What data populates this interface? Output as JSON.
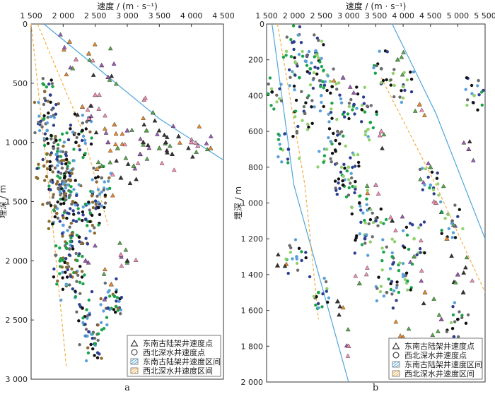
{
  "chart_data": [
    {
      "panel": "a",
      "type": "scatter",
      "xlabel": "速度 / (m · s⁻¹)",
      "ylabel": "埋深 / m",
      "xlim": [
        1500,
        4500
      ],
      "ylim": [
        0,
        3000
      ],
      "y_inverted": true,
      "x_axis_position": "top",
      "xticks": [
        1500,
        2000,
        2500,
        3000,
        3500,
        4000,
        4500
      ],
      "xtick_labels": [
        "1 500",
        "2 000",
        "2 500",
        "3 000",
        "3 500",
        "4 000",
        "4 500"
      ],
      "yticks": [
        0,
        500,
        1000,
        1500,
        2000,
        2500,
        3000
      ],
      "ytick_labels": [
        "0",
        "500",
        "1 000",
        "1 500",
        "2 000",
        "2 500",
        "3 000"
      ],
      "series": [
        {
          "name": "东南古陆架井速度点",
          "marker": "triangle",
          "colors": [
            "#f28fb0",
            "#e88a2d",
            "#9b59b6",
            "#55a84a",
            "#333333"
          ],
          "points": [
            [
              2200,
              300
            ],
            [
              2400,
              250
            ],
            [
              2700,
              450
            ],
            [
              3300,
              900
            ],
            [
              3600,
              1000
            ],
            [
              4000,
              1000
            ],
            [
              4300,
              1050
            ],
            [
              3200,
              1100
            ],
            [
              2600,
              1200
            ],
            [
              2900,
              1300
            ],
            [
              2400,
              800
            ],
            [
              2800,
              850
            ],
            [
              3000,
              900
            ],
            [
              3500,
              1050
            ],
            [
              3800,
              950
            ],
            [
              2500,
              600
            ],
            [
              2300,
              700
            ],
            [
              2700,
              1000
            ],
            [
              3100,
              1200
            ],
            [
              3000,
              2000
            ],
            [
              2900,
              1950
            ],
            [
              2100,
              150
            ],
            [
              2600,
              350
            ],
            [
              3400,
              750
            ],
            [
              3700,
              1100
            ],
            [
              4100,
              1030
            ],
            [
              2750,
              2200
            ],
            [
              2350,
              2000
            ],
            [
              2850,
              1050
            ],
            [
              3250,
              1000
            ]
          ]
        },
        {
          "name": "西北深水井速度点",
          "marker": "circle",
          "colors": [
            "#2f3e8f",
            "#1aa34a",
            "#5aa0d8",
            "#6b6b6b",
            "#8b6b2e",
            "#111111"
          ],
          "points": [
            [
              1800,
              1400
            ],
            [
              1950,
              1300
            ],
            [
              2000,
              1700
            ],
            [
              2100,
              1900
            ],
            [
              2200,
              2100
            ],
            [
              2300,
              2400
            ],
            [
              2400,
              2600
            ],
            [
              2500,
              2700
            ],
            [
              1900,
              1100
            ],
            [
              2050,
              1250
            ],
            [
              2150,
              1500
            ],
            [
              2250,
              1800
            ],
            [
              2350,
              1650
            ],
            [
              1700,
              800
            ],
            [
              1750,
              900
            ],
            [
              1850,
              1050
            ],
            [
              2450,
              1450
            ],
            [
              2550,
              1550
            ],
            [
              2700,
              2400
            ],
            [
              2800,
              2300
            ],
            [
              2000,
              1350
            ],
            [
              2100,
              1450
            ],
            [
              1900,
              1600
            ],
            [
              2200,
              1000
            ],
            [
              1800,
              600
            ],
            [
              1950,
              2000
            ],
            [
              2050,
              2200
            ],
            [
              2600,
              1300
            ],
            [
              1700,
              1200
            ],
            [
              2300,
              900
            ]
          ]
        }
      ],
      "intervals": [
        {
          "name": "东南古陆架井速度区间",
          "style": "solid",
          "color": "#4da6d9",
          "line": [
            [
              1700,
              0
            ],
            [
              2600,
              400
            ],
            [
              3500,
              800
            ],
            [
              4500,
              1150
            ]
          ]
        },
        {
          "name": "西北深水井速度区间",
          "style": "dashed",
          "color": "#f0a830",
          "lines": [
            [
              [
                1500,
                0
              ],
              [
                1800,
                1500
              ],
              [
                2050,
                2900
              ]
            ],
            [
              [
                1600,
                0
              ],
              [
                2300,
                900
              ],
              [
                2700,
                1700
              ]
            ]
          ]
        }
      ],
      "legend": [
        "东南古陆架井速度点",
        "西北深水井速度点",
        "东南古陆架井速度区间",
        "西北深水井速度区间"
      ],
      "legend_position": "bottom-right"
    },
    {
      "panel": "b",
      "type": "scatter",
      "xlabel": "速度 / (m · s⁻¹)",
      "ylabel": "埋深 / m",
      "xlim": [
        1500,
        5500
      ],
      "ylim": [
        0,
        2000
      ],
      "y_inverted": true,
      "x_axis_position": "top",
      "xticks": [
        1500,
        2000,
        2500,
        3000,
        3500,
        4000,
        4500,
        5000,
        5500
      ],
      "xtick_labels": [
        "1 500",
        "2 000",
        "2 500",
        "3 000",
        "3 500",
        "4 000",
        "4 500",
        "5 000",
        "5 500"
      ],
      "yticks": [
        200,
        400,
        600,
        800,
        1000,
        1200,
        1400,
        1600,
        1800,
        2000
      ],
      "ytick_labels": [
        "200",
        "400",
        "600",
        "800",
        "1 000",
        "1 200",
        "1 400",
        "1 600",
        "1 800",
        "2 000"
      ],
      "series": [
        {
          "name": "东南古陆架井速度点",
          "marker": "triangle",
          "colors": [
            "#f28fb0",
            "#e88a2d",
            "#9b59b6",
            "#55a84a",
            "#333333"
          ],
          "points": [
            [
              4600,
              1000
            ],
            [
              4800,
              1200
            ],
            [
              5000,
              1400
            ],
            [
              4200,
              1300
            ],
            [
              3800,
              1100
            ],
            [
              3500,
              900
            ],
            [
              4400,
              1500
            ],
            [
              4700,
              1650
            ],
            [
              3200,
              1450
            ],
            [
              2800,
              1550
            ],
            [
              3000,
              1800
            ],
            [
              4000,
              1750
            ],
            [
              5200,
              700
            ],
            [
              4500,
              800
            ],
            [
              1700,
              1350
            ],
            [
              3600,
              600
            ],
            [
              4300,
              450
            ],
            [
              2900,
              300
            ],
            [
              3900,
              200
            ],
            [
              5100,
              1500
            ]
          ]
        },
        {
          "name": "西北深水井速度点",
          "marker": "circle",
          "colors": [
            "#2f3e8f",
            "#1aa34a",
            "#5aa0d8",
            "#6b6b6b",
            "#8fd16b",
            "#111111"
          ],
          "points": [
            [
              2000,
              100
            ],
            [
              2300,
              250
            ],
            [
              2500,
              400
            ],
            [
              2800,
              600
            ],
            [
              3000,
              800
            ],
            [
              3200,
              1000
            ],
            [
              3500,
              1100
            ],
            [
              3800,
              1300
            ],
            [
              4000,
              1400
            ],
            [
              2200,
              500
            ],
            [
              2600,
              700
            ],
            [
              2900,
              900
            ],
            [
              3300,
              1200
            ],
            [
              2100,
              300
            ],
            [
              2400,
              150
            ],
            [
              3600,
              250
            ],
            [
              4000,
              350
            ],
            [
              2700,
              350
            ],
            [
              3100,
              450
            ],
            [
              3400,
              550
            ],
            [
              4500,
              900
            ],
            [
              4900,
              1100
            ],
            [
              5300,
              400
            ],
            [
              1600,
              380
            ],
            [
              1900,
              700
            ],
            [
              2450,
              1500
            ],
            [
              2050,
              1300
            ],
            [
              3700,
              1500
            ],
            [
              4200,
              1200
            ],
            [
              5000,
              1650
            ]
          ]
        }
      ],
      "intervals": [
        {
          "name": "东南古陆架井速度区间",
          "style": "solid",
          "color": "#4da6d9",
          "lines": [
            [
              [
                1600,
                0
              ],
              [
                2000,
                900
              ],
              [
                3000,
                2000
              ]
            ],
            [
              [
                3800,
                0
              ],
              [
                4600,
                500
              ],
              [
                5500,
                1200
              ]
            ]
          ]
        },
        {
          "name": "西北深水井速度区间",
          "style": "dashed",
          "color": "#f0a830",
          "lines": [
            [
              [
                1700,
                0
              ],
              [
                2200,
                900
              ],
              [
                2450,
                1650
              ]
            ],
            [
              [
                3600,
                300
              ],
              [
                4600,
                900
              ],
              [
                5500,
                1500
              ]
            ]
          ]
        }
      ],
      "legend": [
        "东南古陆架井速度点",
        "西北深水井速度点",
        "东南古陆架井速度区间",
        "西北深水井速度区间"
      ],
      "legend_position": "bottom-right"
    }
  ]
}
